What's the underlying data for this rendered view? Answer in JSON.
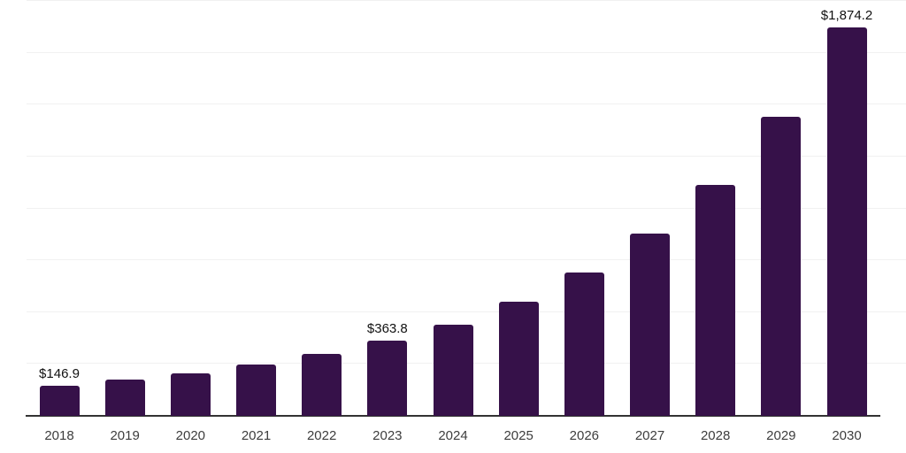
{
  "chart_data": {
    "type": "bar",
    "title": "",
    "xlabel": "",
    "ylabel": "",
    "categories": [
      "2018",
      "2019",
      "2020",
      "2021",
      "2022",
      "2023",
      "2024",
      "2025",
      "2026",
      "2027",
      "2028",
      "2029",
      "2030"
    ],
    "values": [
      146.9,
      175,
      205,
      248,
      299,
      363.8,
      441,
      552,
      690,
      877,
      1115,
      1440,
      1874.2
    ],
    "value_labels": [
      "$146.9",
      "",
      "",
      "",
      "",
      "$363.8",
      "",
      "",
      "",
      "",
      "",
      "",
      "$1,874.2"
    ],
    "ylim": [
      0,
      2000
    ],
    "gridline_interval": 250,
    "grid": true,
    "legend_position": "none",
    "colors": {
      "bar": "#361149",
      "axis_line": "#333333",
      "gridline": "#f1f1f1",
      "value_label": "#111111",
      "tick_label": "#3d3d3d",
      "background": "#ffffff"
    }
  }
}
